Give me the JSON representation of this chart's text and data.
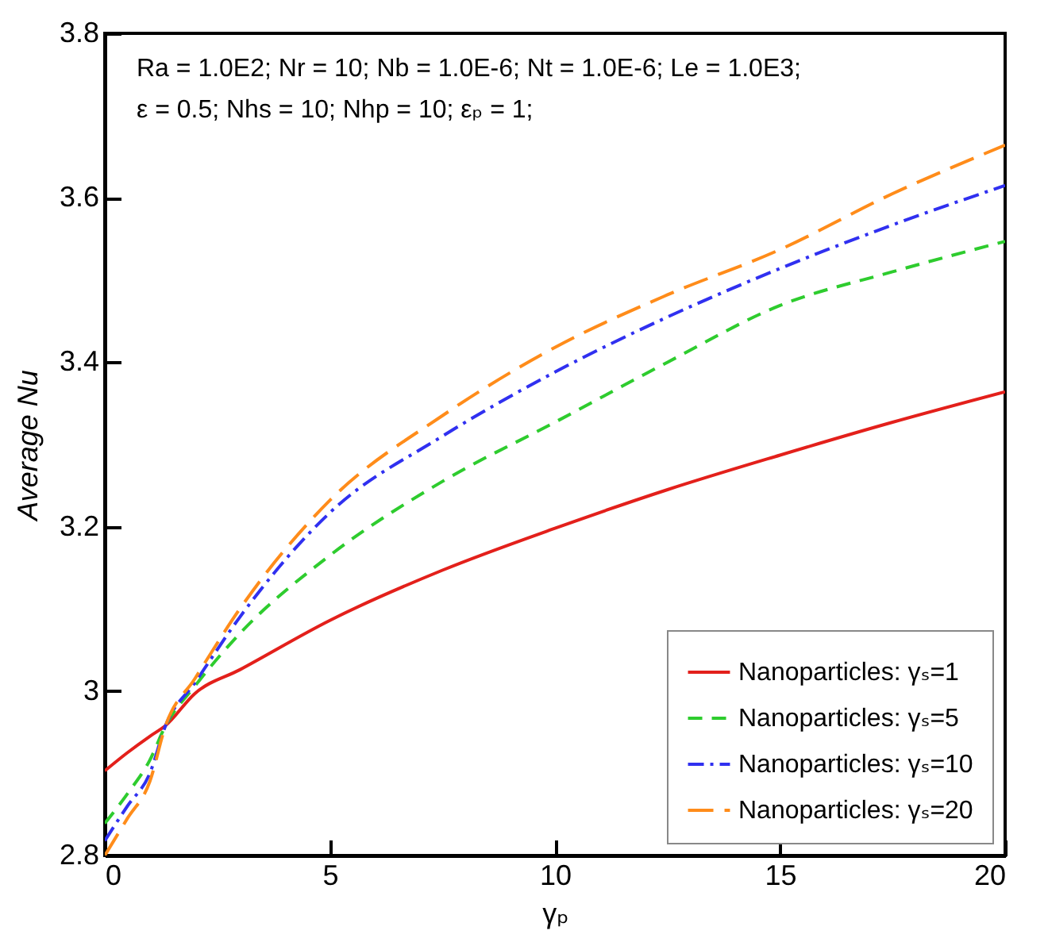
{
  "chart_data": {
    "type": "line",
    "xlabel": "γₚ",
    "ylabel": "Average Nu",
    "annotations": [
      "Ra = 1.0E2; Nr = 10; Nb = 1.0E-6; Nt = 1.0E-6; Le = 1.0E3;",
      "ε = 0.5; Nhs = 10; Nhp = 10; εₚ = 1;"
    ],
    "x": [
      0,
      0.5,
      1,
      1.35,
      2,
      3,
      5,
      7.5,
      10,
      12.5,
      15,
      17.5,
      20
    ],
    "series": [
      {
        "name": "Nanoparticles: γₛ=1",
        "color": "#e3201b",
        "line_style": "solid",
        "values": [
          2.903,
          2.925,
          2.945,
          2.958,
          2.997,
          3.026,
          3.086,
          3.147,
          3.198,
          3.245,
          3.287,
          3.327,
          3.364
        ]
      },
      {
        "name": "Nanoparticles: γₛ=5",
        "color": "#2ecc2e",
        "line_style": "dashed",
        "values": [
          2.839,
          2.875,
          2.916,
          2.958,
          3.006,
          3.07,
          3.165,
          3.255,
          3.327,
          3.4,
          3.469,
          3.51,
          3.547
        ]
      },
      {
        "name": "Nanoparticles: γₛ=10",
        "color": "#3030f0",
        "line_style": "dashdot",
        "values": [
          2.818,
          2.86,
          2.9,
          2.958,
          3.01,
          3.09,
          3.217,
          3.31,
          3.388,
          3.455,
          3.514,
          3.567,
          3.615
        ]
      },
      {
        "name": "Nanoparticles: γₛ=20",
        "color": "#ff8c1a",
        "line_style": "longdash",
        "values": [
          2.8,
          2.845,
          2.89,
          2.958,
          3.015,
          3.1,
          3.232,
          3.335,
          3.418,
          3.482,
          3.537,
          3.605,
          3.664
        ]
      }
    ],
    "xlim": [
      0,
      20
    ],
    "xticks": [
      0,
      5,
      10,
      15,
      20
    ],
    "ylim": [
      2.8,
      3.8
    ],
    "yticks": [
      2.8,
      3,
      3.2,
      3.4,
      3.6,
      3.8
    ],
    "grid": false,
    "legend": "bottom right",
    "marker": "none"
  }
}
